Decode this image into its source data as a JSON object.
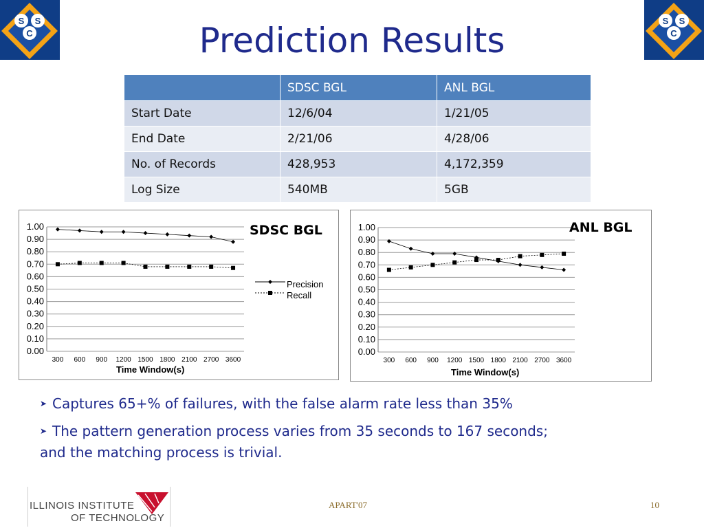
{
  "slide": {
    "title": "Prediction Results",
    "logo_text": [
      "S",
      "S",
      "C"
    ],
    "accent_color": "#1f2a8c",
    "table_header_color": "#4f81bd"
  },
  "table": {
    "columns": [
      "",
      "SDSC BGL",
      "ANL BGL"
    ],
    "rows": [
      [
        "Start Date",
        "12/6/04",
        "1/21/05"
      ],
      [
        "End Date",
        "2/21/06",
        "4/28/06"
      ],
      [
        "No. of Records",
        "428,953",
        "4,172,359"
      ],
      [
        "Log Size",
        "540MB",
        "5GB"
      ]
    ]
  },
  "chart_data": [
    {
      "type": "line",
      "title": "SDSC BGL",
      "xlabel": "Time Window(s)",
      "ylabel": "",
      "categories": [
        "300",
        "600",
        "900",
        "1200",
        "1500",
        "1800",
        "2100",
        "2700",
        "3600"
      ],
      "ylim": [
        0,
        1
      ],
      "yticks": [
        "0.00",
        "0.10",
        "0.20",
        "0.30",
        "0.40",
        "0.50",
        "0.60",
        "0.70",
        "0.80",
        "0.90",
        "1.00"
      ],
      "grid": true,
      "legend": "right",
      "series": [
        {
          "name": "Precision",
          "values": [
            0.98,
            0.97,
            0.96,
            0.96,
            0.95,
            0.94,
            0.93,
            0.92,
            0.88
          ]
        },
        {
          "name": "Recall",
          "values": [
            0.7,
            0.71,
            0.71,
            0.71,
            0.68,
            0.68,
            0.68,
            0.68,
            0.67
          ]
        }
      ]
    },
    {
      "type": "line",
      "title": "ANL BGL",
      "xlabel": "Time Window(s)",
      "ylabel": "",
      "categories": [
        "300",
        "600",
        "900",
        "1200",
        "1500",
        "1800",
        "2100",
        "2700",
        "3600"
      ],
      "ylim": [
        0,
        1
      ],
      "yticks": [
        "0.00",
        "0.10",
        "0.20",
        "0.30",
        "0.40",
        "0.50",
        "0.60",
        "0.70",
        "0.80",
        "0.90",
        "1.00"
      ],
      "grid": true,
      "legend": "none",
      "series": [
        {
          "name": "Precision",
          "values": [
            0.89,
            0.83,
            0.79,
            0.79,
            0.76,
            0.73,
            0.7,
            0.68,
            0.66
          ]
        },
        {
          "name": "Recall",
          "values": [
            0.66,
            0.68,
            0.7,
            0.72,
            0.74,
            0.74,
            0.77,
            0.78,
            0.79
          ]
        }
      ]
    }
  ],
  "bullets": [
    "Captures 65+% of failures, with the false alarm rate less than 35%",
    "The pattern generation process varies from 35 seconds to 167 seconds;",
    "and the matching process is trivial."
  ],
  "footer": {
    "org_line1": "ILLINOIS INSTITUTE",
    "org_line2": "OF TECHNOLOGY",
    "center": "APART'07",
    "page": "10"
  }
}
